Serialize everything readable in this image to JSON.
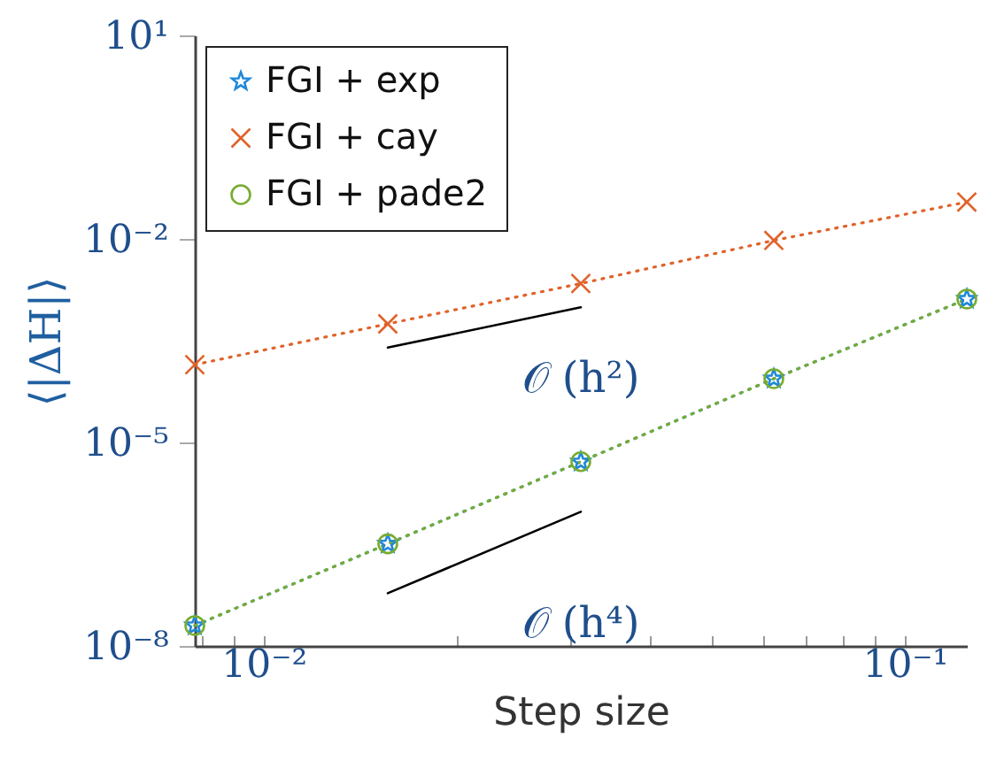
{
  "chart_data": {
    "type": "line",
    "xlabel": "Step size",
    "ylabel": "⟨|ΔH|⟩",
    "log": "xy",
    "grid": false,
    "legend": "top left",
    "line_style": "dotted",
    "x": [
      0.0078125,
      0.015625,
      0.03125,
      0.0625,
      0.125
    ],
    "xlim": [
      0.0078125,
      0.125
    ],
    "xticks": [
      {
        "value": 0.008,
        "label": null
      },
      {
        "value": 0.009,
        "label": null
      },
      {
        "value": 0.01,
        "label": "10⁻²"
      },
      {
        "value": 0.02,
        "label": null
      },
      {
        "value": 0.03,
        "label": null
      },
      {
        "value": 0.04,
        "label": null
      },
      {
        "value": 0.05,
        "label": null
      },
      {
        "value": 0.06,
        "label": null
      },
      {
        "value": 0.07,
        "label": null
      },
      {
        "value": 0.08,
        "label": null
      },
      {
        "value": 0.09,
        "label": null
      },
      {
        "value": 0.1,
        "label": "10⁻¹"
      }
    ],
    "ylim": [
      1e-08,
      10
    ],
    "yticks": [
      {
        "value": 1e-08,
        "label": "10⁻⁸"
      },
      {
        "value": 1e-05,
        "label": "10⁻⁵"
      },
      {
        "value": 0.01,
        "label": "10⁻²"
      },
      {
        "value": 10,
        "label": "10¹"
      }
    ],
    "series": [
      {
        "name": "FGI + exp",
        "color": "#1e88d9",
        "marker": "star",
        "values": [
          2e-08,
          3.2e-07,
          5.2e-06,
          8.7e-05,
          0.0013
        ]
      },
      {
        "name": "FGI + cay",
        "color": "#e0622a",
        "marker": "cross",
        "values": [
          0.00014,
          0.00056,
          0.0022,
          0.0095,
          0.035
        ]
      },
      {
        "name": "FGI + pade2",
        "color": "#77ac30",
        "marker": "circle",
        "values": [
          2e-08,
          3.2e-07,
          5.2e-06,
          8.7e-05,
          0.0013
        ]
      },
      {
        "color": "#000000",
        "line_style": "solid",
        "values": [
          null,
          0.00025,
          0.00098,
          null,
          null
        ]
      },
      {
        "color": "#000000",
        "line_style": "solid",
        "values": [
          null,
          6e-08,
          9.5e-07,
          null,
          null
        ]
      }
    ],
    "annotations": [
      "𝒪 (h²)",
      "𝒪 (h⁴)"
    ]
  }
}
